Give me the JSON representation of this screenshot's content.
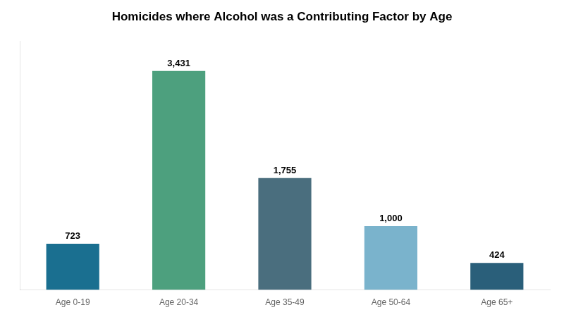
{
  "chart_data": {
    "type": "bar",
    "title": "Homicides where Alcohol was a Contributing Factor by Age",
    "categories": [
      "Age 0-19",
      "Age 20-34",
      "Age 35-49",
      "Age 50-64",
      "Age 65+"
    ],
    "values": [
      723,
      3431,
      1755,
      1000,
      424
    ],
    "value_labels": [
      "723",
      "3,431",
      "1,755",
      "1,000",
      "424"
    ],
    "colors": [
      "#1a6f90",
      "#4da07e",
      "#4a6e7e",
      "#7ab3cc",
      "#2a5f7a"
    ],
    "ylim": [
      0,
      3900
    ],
    "yticks": [],
    "grid": false,
    "data_labels": true,
    "tick_labels": "x"
  }
}
